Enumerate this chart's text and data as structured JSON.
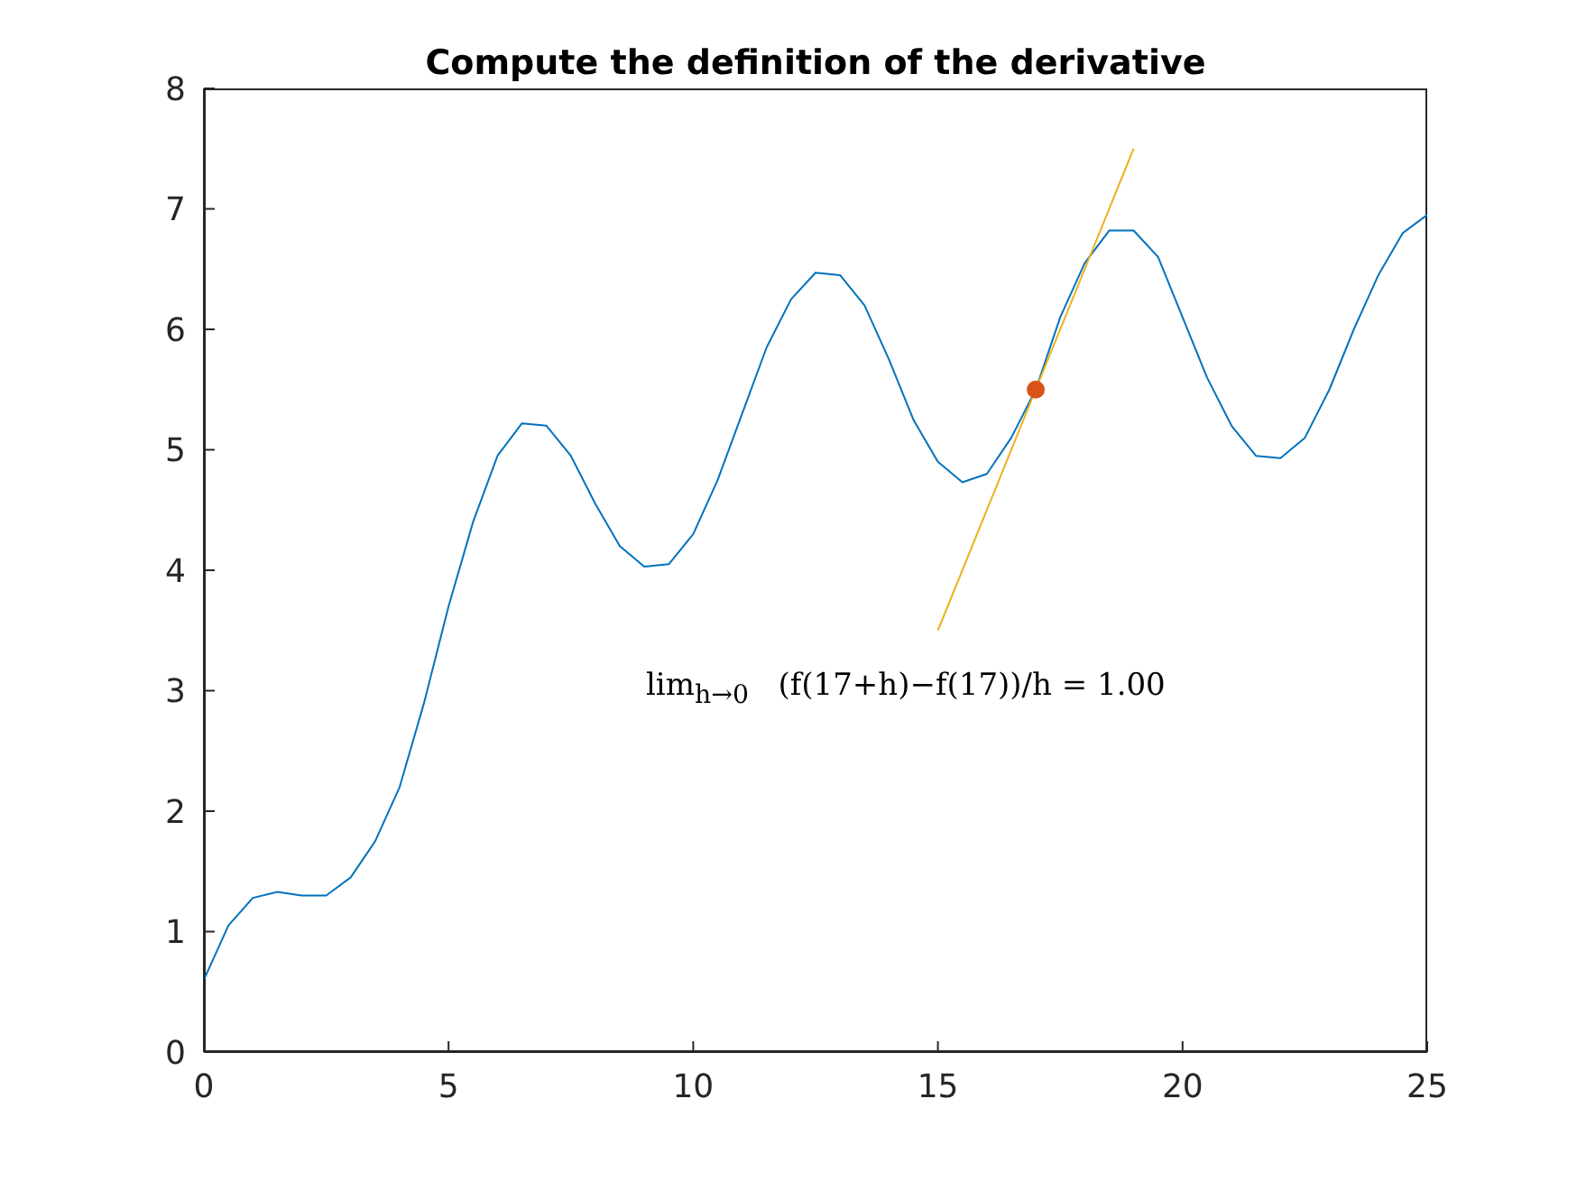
{
  "chart_data": {
    "type": "line",
    "title": "Compute the definition of the derivative",
    "xlim": [
      0,
      25
    ],
    "xticks": [
      0,
      5,
      10,
      15,
      20,
      25
    ],
    "ylim": [
      0,
      8
    ],
    "yticks": [
      0,
      1,
      2,
      3,
      4,
      5,
      6,
      7,
      8
    ],
    "grid": false,
    "legend": false,
    "annotations": [
      "lim$_{h→0}$   (f(17+h)−f(17))/h = 1.00"
    ],
    "series": [
      {
        "type": "line",
        "color": "#0072bd",
        "x": [
          0,
          0.5,
          1,
          1.5,
          2,
          2.5,
          3,
          3.5,
          4,
          4.5,
          5,
          5.5,
          6,
          6.5,
          7,
          7.5,
          8,
          8.5,
          9,
          9.5,
          10,
          10.5,
          11,
          11.5,
          12,
          12.5,
          13,
          13.5,
          14,
          14.5,
          15,
          15.5,
          16,
          16.5,
          17,
          17.5,
          18,
          18.5,
          19,
          19.5,
          20,
          20.5,
          21,
          21.5,
          22,
          22.5,
          23,
          23.5,
          24,
          24.5,
          25
        ],
        "values": [
          0.6,
          1.05,
          1.28,
          1.33,
          1.3,
          1.3,
          1.45,
          1.75,
          2.2,
          2.9,
          3.7,
          4.4,
          4.95,
          5.22,
          5.2,
          4.95,
          4.55,
          4.2,
          4.03,
          4.05,
          4.3,
          4.75,
          5.3,
          5.85,
          6.25,
          6.47,
          6.45,
          6.2,
          5.75,
          5.25,
          4.9,
          4.73,
          4.8,
          5.1,
          5.5,
          6.1,
          6.55,
          6.82,
          6.82,
          6.6,
          6.1,
          5.6,
          5.2,
          4.95,
          4.93,
          5.1,
          5.5,
          6.0,
          6.45,
          6.8,
          6.95
        ]
      },
      {
        "type": "line",
        "color": "#edb120",
        "x": [
          15,
          19
        ],
        "values": [
          3.5,
          7.5
        ]
      },
      {
        "type": "scatter",
        "color": "#d95319",
        "marker": "circle",
        "x": [
          17
        ],
        "values": [
          5.5
        ]
      }
    ]
  }
}
